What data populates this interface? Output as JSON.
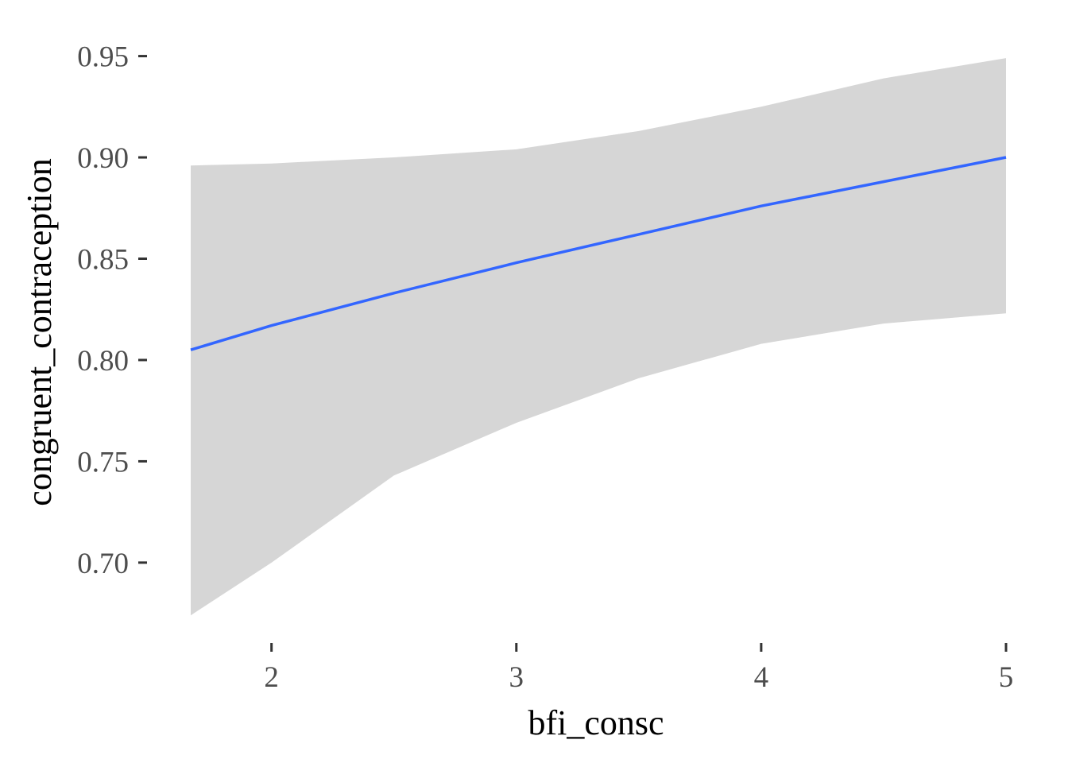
{
  "chart_data": {
    "type": "line",
    "xlabel": "bfi_consc",
    "ylabel": "congruent_contraception",
    "xlim": [
      1.67,
      5.0
    ],
    "ylim": [
      0.667,
      0.962
    ],
    "x_ticks": [
      2,
      3,
      4,
      5
    ],
    "x_tick_labels": [
      "2",
      "3",
      "4",
      "5"
    ],
    "y_ticks": [
      0.7,
      0.75,
      0.8,
      0.85,
      0.9,
      0.95
    ],
    "y_tick_labels": [
      "0.70",
      "0.75",
      "0.80",
      "0.85",
      "0.90",
      "0.95"
    ],
    "grid": false,
    "series": [
      {
        "x": [
          1.67,
          2.0,
          2.5,
          3.0,
          3.5,
          4.0,
          4.5,
          5.0
        ],
        "y": [
          0.805,
          0.817,
          0.833,
          0.848,
          0.862,
          0.876,
          0.888,
          0.9
        ],
        "ci_lower": [
          0.674,
          0.7,
          0.743,
          0.769,
          0.791,
          0.808,
          0.818,
          0.823
        ],
        "ci_upper": [
          0.896,
          0.897,
          0.9,
          0.904,
          0.913,
          0.925,
          0.939,
          0.949
        ]
      }
    ],
    "colors": {
      "line": "#3366FF",
      "ribbon": "#d6d6d6",
      "tick": "#333333"
    }
  }
}
